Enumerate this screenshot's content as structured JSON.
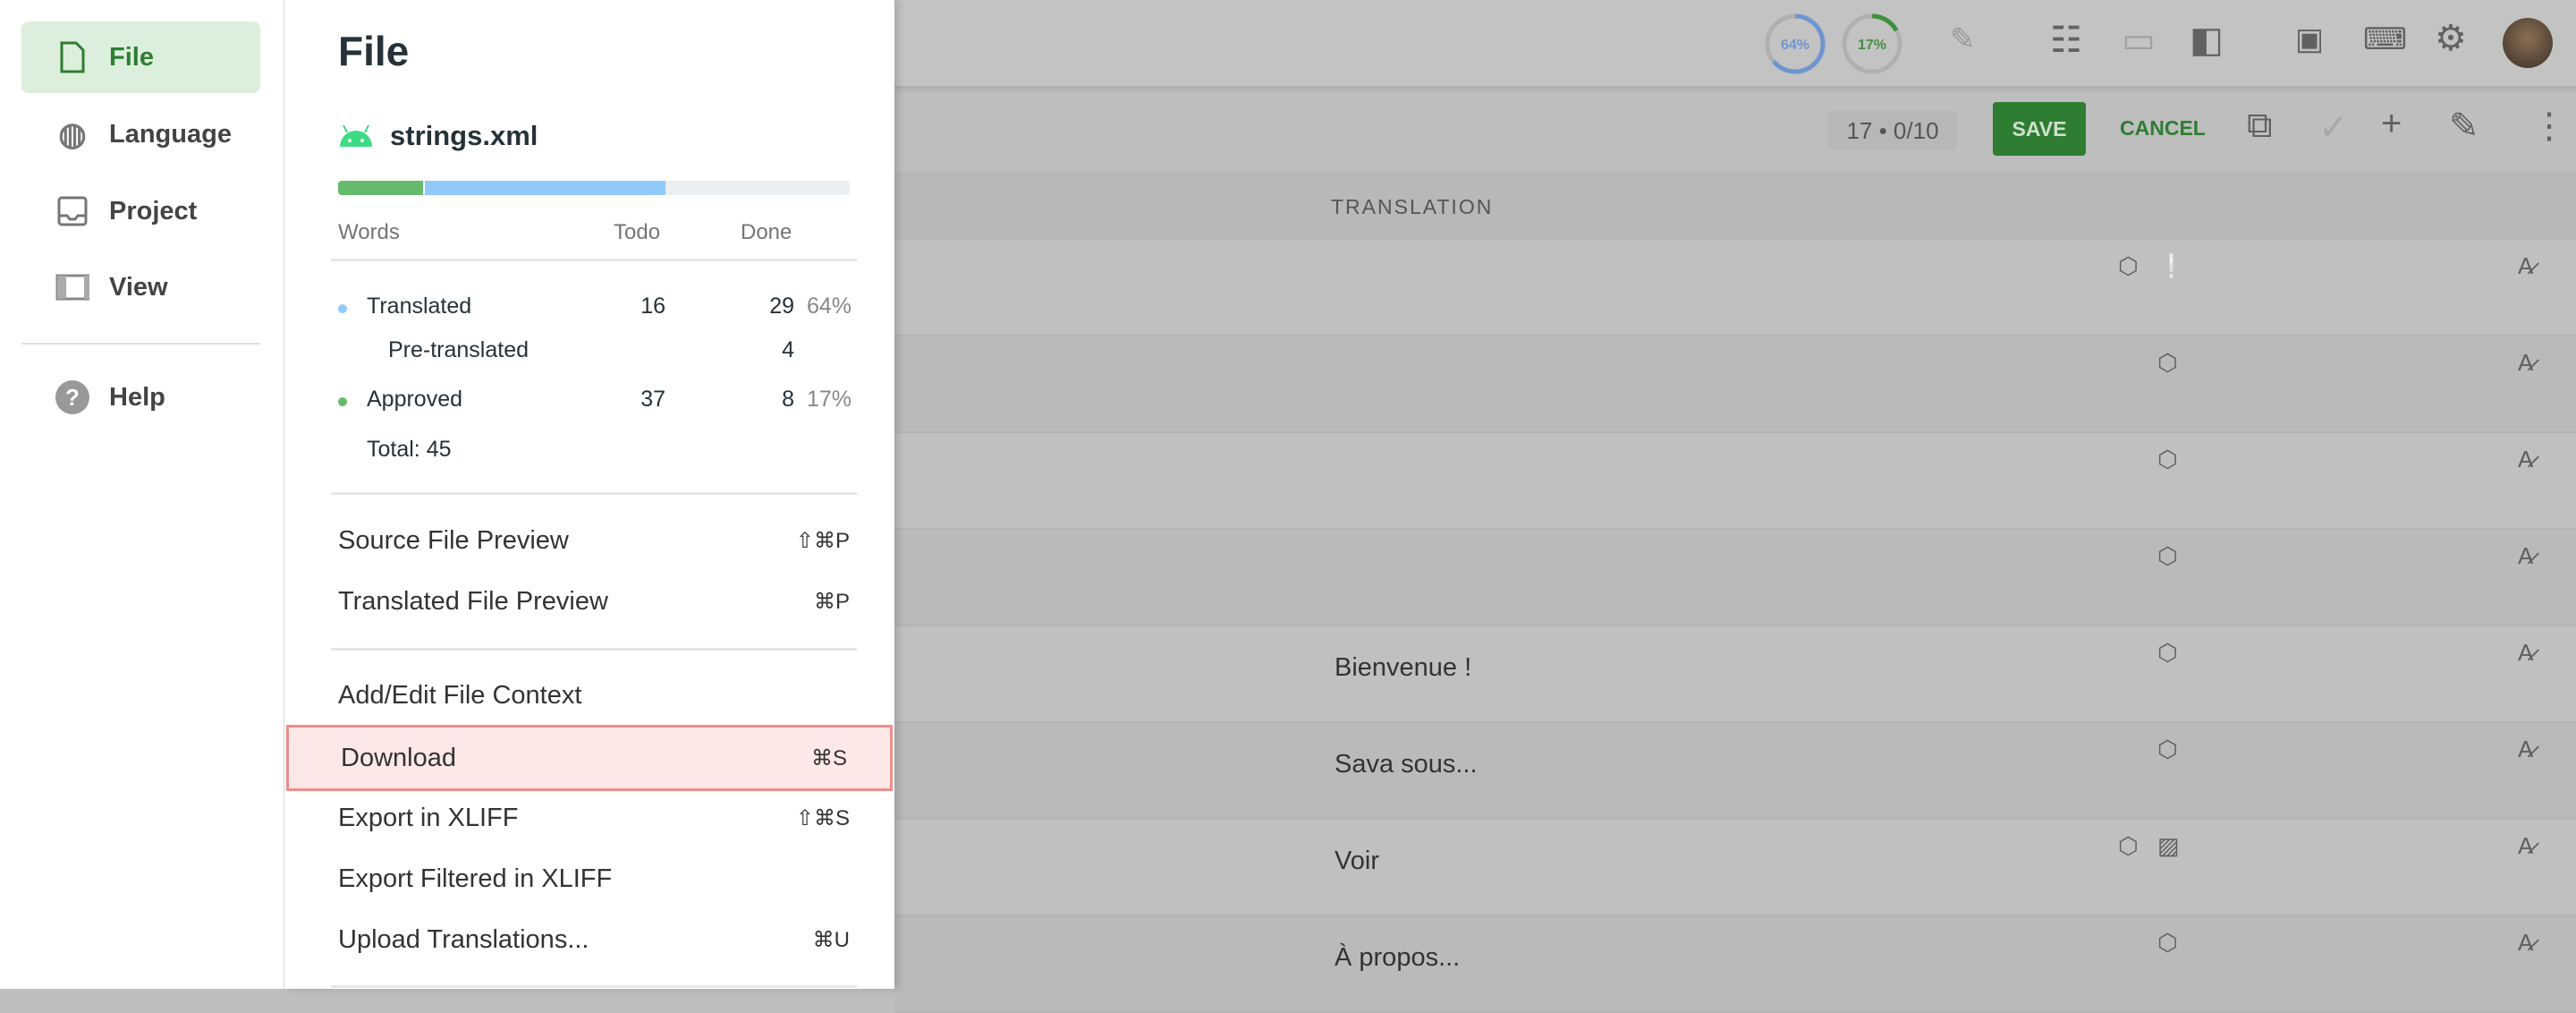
{
  "sidebar": {
    "items": [
      {
        "label": "File",
        "icon": "file-icon",
        "active": true
      },
      {
        "label": "Language",
        "icon": "globe-icon"
      },
      {
        "label": "Project",
        "icon": "inbox-icon"
      },
      {
        "label": "View",
        "icon": "view-columns-icon"
      },
      {
        "label": "Help",
        "icon": "help-icon"
      }
    ]
  },
  "panel": {
    "title": "File",
    "file_name": "strings.xml",
    "file_icon": "android-icon",
    "progress": {
      "approved_pct": 17,
      "translated_pct": 64,
      "colors": {
        "approved": "#66bb6a",
        "translated": "#90caf9",
        "rest": "#eceff1"
      }
    },
    "stats": {
      "headers": {
        "words": "Words",
        "todo": "Todo",
        "done": "Done"
      },
      "translated": {
        "label": "Translated",
        "todo": "16",
        "done": "29",
        "pct": "64%"
      },
      "pretranslated": {
        "label": "Pre-translated",
        "done": "4"
      },
      "approved": {
        "label": "Approved",
        "todo": "37",
        "done": "8",
        "pct": "17%"
      },
      "total": "Total: 45"
    },
    "menu": [
      {
        "label": "Source File Preview",
        "shortcut": "⇧⌘P"
      },
      {
        "label": "Translated File Preview",
        "shortcut": "⌘P"
      },
      {
        "label": "Add/Edit File Context",
        "shortcut": ""
      },
      {
        "label": "Download",
        "shortcut": "⌘S",
        "highlighted": true
      },
      {
        "label": "Export in XLIFF",
        "shortcut": "⇧⌘S"
      },
      {
        "label": "Export Filtered in XLIFF",
        "shortcut": ""
      },
      {
        "label": "Upload Translations...",
        "shortcut": "⌘U"
      }
    ]
  },
  "topbar": {
    "translated_ring": "64%",
    "approved_ring": "17%",
    "accent_blue": "#5c8fd6",
    "accent_green": "#2e7d32"
  },
  "toolbar": {
    "counter": "17 • 0/10",
    "save": "SAVE",
    "cancel": "CANCEL"
  },
  "table": {
    "column_header": "TRANSLATION",
    "rows": [
      {
        "translation": "",
        "icons": [
          "tag-icon",
          "comment-alert-icon"
        ]
      },
      {
        "translation": "",
        "icons": [
          "tag-icon"
        ]
      },
      {
        "translation": "",
        "icons": [
          "tag-icon"
        ]
      },
      {
        "translation": "",
        "icons": [
          "tag-icon"
        ]
      },
      {
        "translation": "Bienvenue !",
        "icons": [
          "tag-icon"
        ]
      },
      {
        "translation": "Sava sous...",
        "icons": [
          "tag-icon"
        ]
      },
      {
        "translation": "Voir",
        "icons": [
          "tag-icon",
          "image-icon"
        ]
      },
      {
        "translation": "À propos...",
        "icons": [
          "tag-icon"
        ]
      }
    ]
  }
}
